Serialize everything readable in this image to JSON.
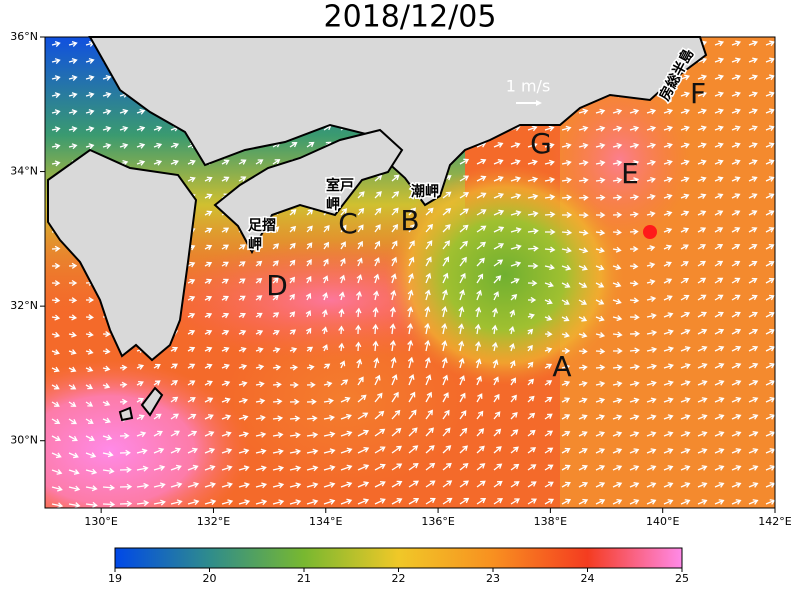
{
  "title": "2018/12/05",
  "map": {
    "lat_ticks": [
      {
        "value": 30,
        "label": "30°N"
      },
      {
        "value": 32,
        "label": "32°N"
      },
      {
        "value": 34,
        "label": "34°N"
      },
      {
        "value": 36,
        "label": "36°N"
      }
    ],
    "lon_ticks": [
      {
        "value": 130,
        "label": "130°E"
      },
      {
        "value": 132,
        "label": "132°E"
      },
      {
        "value": 134,
        "label": "134°E"
      },
      {
        "value": 136,
        "label": "136°E"
      },
      {
        "value": 138,
        "label": "138°E"
      },
      {
        "value": 140,
        "label": "140°E"
      },
      {
        "value": 142,
        "label": "142°E"
      }
    ],
    "lonlim": [
      129,
      142
    ],
    "latlim": [
      29,
      36
    ],
    "scale_label": "1 m/s",
    "region_labels": [
      "A",
      "B",
      "C",
      "D",
      "E",
      "F",
      "G"
    ],
    "place_labels": [
      [
        "室戸",
        "岬"
      ],
      [
        "足摺",
        "岬"
      ],
      [
        "潮岬"
      ],
      [
        "房総半島"
      ]
    ]
  },
  "colorbar": {
    "ticks": [
      19,
      20,
      21,
      22,
      23,
      24,
      25
    ],
    "lim": [
      19,
      25
    ],
    "colors": [
      "#0048e8",
      "#2f8c8c",
      "#78b830",
      "#f0c828",
      "#f89020",
      "#f43c20",
      "#ff8ae8"
    ]
  }
}
